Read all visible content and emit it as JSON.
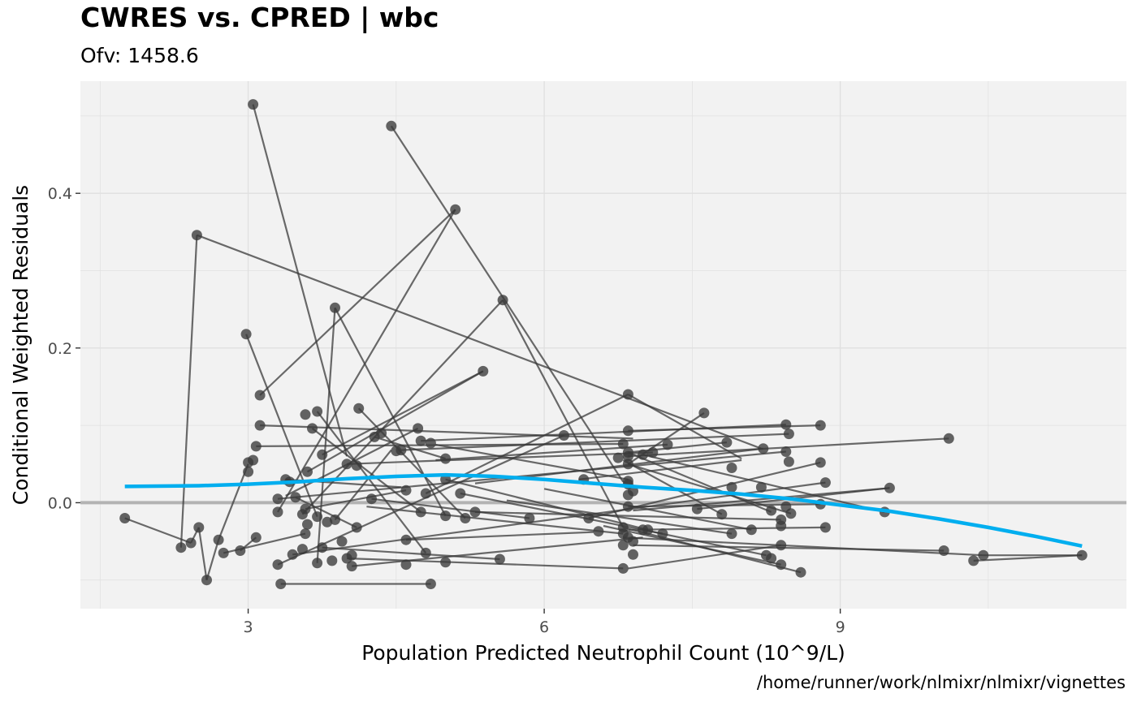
{
  "chart_data": {
    "type": "scatter",
    "title": "CWRES vs. CPRED | wbc",
    "subtitle": "Ofv: 1458.6",
    "caption": "/home/runner/work/nlmixr/nlmixr/vignettes",
    "xlabel": "Population Predicted Neutrophil Count (10^9/L)",
    "ylabel": "Conditional Weighted Residuals",
    "xlim": [
      1.3,
      11.9
    ],
    "ylim": [
      -0.137,
      0.545
    ],
    "xticks": [
      3,
      6,
      9
    ],
    "yticks": [
      0.0,
      0.2,
      0.4
    ],
    "grid": true,
    "reference_line_y": 0.0,
    "colors": {
      "points": "#3a3a3a",
      "lines": "#3a3a3a",
      "smooth": "#00aeef",
      "reference": "#b3b3b3",
      "panel": "#f2f2f2",
      "grid": "#e0e0e0"
    },
    "paths": [
      [
        [
          3.05,
          0.515
        ],
        [
          4.0,
          0.06
        ]
      ],
      [
        [
          4.45,
          0.487
        ],
        [
          6.8,
          0.027
        ]
      ],
      [
        [
          2.48,
          0.346
        ],
        [
          2.32,
          -0.058
        ]
      ],
      [
        [
          2.48,
          0.346
        ],
        [
          8.2,
          0.07
        ]
      ],
      [
        [
          5.1,
          0.379
        ],
        [
          3.12,
          0.139
        ]
      ],
      [
        [
          5.1,
          0.379
        ],
        [
          3.3,
          -0.012
        ]
      ],
      [
        [
          5.58,
          0.262
        ],
        [
          6.8,
          -0.032
        ]
      ],
      [
        [
          5.58,
          0.262
        ],
        [
          3.55,
          -0.015
        ]
      ],
      [
        [
          3.88,
          0.252
        ],
        [
          5.0,
          -0.017
        ]
      ],
      [
        [
          3.88,
          0.252
        ],
        [
          3.7,
          -0.078
        ]
      ],
      [
        [
          2.98,
          0.218
        ],
        [
          3.7,
          -0.018
        ]
      ],
      [
        [
          5.38,
          0.17
        ],
        [
          3.6,
          0.04
        ]
      ],
      [
        [
          6.85,
          0.14
        ],
        [
          8.0,
          0.057
        ]
      ],
      [
        [
          6.85,
          0.14
        ],
        [
          4.8,
          0.012
        ]
      ],
      [
        [
          4.12,
          0.122
        ],
        [
          5.2,
          -0.02
        ]
      ],
      [
        [
          7.62,
          0.116
        ],
        [
          6.85,
          0.05
        ]
      ],
      [
        [
          3.12,
          0.1
        ],
        [
          6.9,
          0.083
        ]
      ],
      [
        [
          3.65,
          0.096
        ],
        [
          4.75,
          -0.012
        ]
      ],
      [
        [
          6.85,
          0.093
        ],
        [
          8.8,
          0.1
        ]
      ],
      [
        [
          4.72,
          0.096
        ],
        [
          3.38,
          0.009
        ]
      ],
      [
        [
          3.7,
          0.118
        ],
        [
          4.8,
          -0.065
        ]
      ],
      [
        [
          6.2,
          0.087
        ],
        [
          3.3,
          -0.08
        ]
      ],
      [
        [
          6.8,
          0.076
        ],
        [
          3.08,
          0.073
        ]
      ],
      [
        [
          8.45,
          0.101
        ],
        [
          4.75,
          0.08
        ]
      ],
      [
        [
          8.48,
          0.089
        ],
        [
          4.55,
          0.068
        ]
      ],
      [
        [
          8.22,
          0.07
        ],
        [
          5.3,
          0.025
        ]
      ],
      [
        [
          7.85,
          0.078
        ],
        [
          6.85,
          0.065
        ]
      ],
      [
        [
          6.85,
          0.06
        ],
        [
          10.1,
          0.083
        ]
      ],
      [
        [
          8.8,
          0.052
        ],
        [
          6.45,
          -0.02
        ]
      ],
      [
        [
          8.85,
          0.026
        ],
        [
          3.45,
          -0.067
        ]
      ],
      [
        [
          8.45,
          0.066
        ],
        [
          3.3,
          0.005
        ]
      ],
      [
        [
          9.5,
          0.019
        ],
        [
          6.9,
          -0.01
        ]
      ],
      [
        [
          8.5,
          -0.014
        ],
        [
          6.85,
          0.05
        ]
      ],
      [
        [
          9.45,
          -0.012
        ],
        [
          7.0,
          0.062
        ]
      ],
      [
        [
          10.05,
          -0.062
        ],
        [
          6.9,
          -0.055
        ]
      ],
      [
        [
          10.45,
          -0.068
        ],
        [
          6.8,
          -0.045
        ]
      ],
      [
        [
          11.45,
          -0.068
        ],
        [
          10.45,
          -0.068
        ]
      ],
      [
        [
          11.45,
          -0.068
        ],
        [
          10.35,
          -0.075
        ]
      ],
      [
        [
          8.85,
          -0.032
        ],
        [
          6.85,
          -0.035
        ]
      ],
      [
        [
          8.6,
          -0.09
        ],
        [
          6.8,
          -0.032
        ]
      ],
      [
        [
          8.4,
          -0.08
        ],
        [
          6.6,
          -0.03
        ]
      ],
      [
        [
          8.25,
          -0.068
        ],
        [
          7.0,
          -0.035
        ]
      ],
      [
        [
          8.4,
          -0.055
        ],
        [
          6.85,
          -0.085
        ]
      ],
      [
        [
          6.8,
          -0.085
        ],
        [
          4.0,
          -0.072
        ]
      ],
      [
        [
          4.85,
          -0.105
        ],
        [
          3.33,
          -0.105
        ]
      ],
      [
        [
          5.55,
          -0.073
        ],
        [
          3.75,
          -0.058
        ]
      ],
      [
        [
          1.75,
          -0.02
        ],
        [
          2.42,
          -0.052
        ]
      ],
      [
        [
          2.42,
          -0.052
        ],
        [
          2.5,
          -0.032
        ]
      ],
      [
        [
          2.5,
          -0.032
        ],
        [
          2.58,
          -0.1
        ]
      ],
      [
        [
          2.58,
          -0.1
        ],
        [
          2.7,
          -0.048
        ]
      ],
      [
        [
          2.7,
          -0.048
        ],
        [
          3.0,
          0.05
        ]
      ],
      [
        [
          2.75,
          -0.065
        ],
        [
          3.58,
          -0.04
        ]
      ],
      [
        [
          2.92,
          -0.062
        ],
        [
          3.08,
          -0.045
        ]
      ],
      [
        [
          3.38,
          0.03
        ],
        [
          4.55,
          0.02
        ]
      ],
      [
        [
          3.48,
          0.007
        ],
        [
          4.1,
          -0.032
        ]
      ],
      [
        [
          4.25,
          0.005
        ],
        [
          5.85,
          -0.02
        ]
      ],
      [
        [
          4.28,
          0.085
        ],
        [
          5.0,
          0.057
        ]
      ],
      [
        [
          4.0,
          0.05
        ],
        [
          7.1,
          0.065
        ]
      ],
      [
        [
          4.2,
          -0.005
        ],
        [
          6.8,
          -0.04
        ]
      ],
      [
        [
          5.0,
          0.03
        ],
        [
          7.05,
          -0.035
        ]
      ],
      [
        [
          5.15,
          0.012
        ],
        [
          7.2,
          -0.04
        ]
      ],
      [
        [
          4.6,
          -0.048
        ],
        [
          6.5,
          -0.038
        ]
      ],
      [
        [
          4.05,
          -0.082
        ],
        [
          7.0,
          -0.045
        ]
      ],
      [
        [
          5.62,
          0.003
        ],
        [
          7.9,
          -0.04
        ]
      ],
      [
        [
          6.0,
          0.018
        ],
        [
          8.1,
          -0.035
        ]
      ],
      [
        [
          6.85,
          0.065
        ],
        [
          8.3,
          -0.012
        ]
      ],
      [
        [
          6.8,
          0.055
        ],
        [
          7.8,
          -0.015
        ]
      ],
      [
        [
          5.3,
          -0.012
        ],
        [
          8.4,
          -0.022
        ]
      ],
      [
        [
          6.35,
          0.03
        ],
        [
          8.0,
          0.055
        ]
      ],
      [
        [
          4.9,
          0.055
        ],
        [
          7.25,
          0.075
        ]
      ],
      [
        [
          6.85,
          -0.005
        ],
        [
          8.8,
          -0.002
        ]
      ],
      [
        [
          7.55,
          -0.008
        ],
        [
          9.5,
          0.019
        ]
      ],
      [
        [
          3.75,
          0.062
        ],
        [
          5.38,
          0.17
        ]
      ],
      [
        [
          3.88,
          -0.022
        ],
        [
          4.45,
          0.068
        ]
      ],
      [
        [
          3.58,
          -0.008
        ],
        [
          4.6,
          0.016
        ]
      ],
      [
        [
          4.9,
          0.075
        ],
        [
          6.85,
          0.03
        ]
      ]
    ],
    "points": [
      [
        3.05,
        0.515
      ],
      [
        4.45,
        0.487
      ],
      [
        5.1,
        0.379
      ],
      [
        2.48,
        0.346
      ],
      [
        5.58,
        0.262
      ],
      [
        3.88,
        0.252
      ],
      [
        2.98,
        0.218
      ],
      [
        5.38,
        0.17
      ],
      [
        6.85,
        0.14
      ],
      [
        3.12,
        0.139
      ],
      [
        4.12,
        0.122
      ],
      [
        3.7,
        0.118
      ],
      [
        7.62,
        0.116
      ],
      [
        3.58,
        0.114
      ],
      [
        3.12,
        0.1
      ],
      [
        8.8,
        0.1
      ],
      [
        8.45,
        0.101
      ],
      [
        4.72,
        0.096
      ],
      [
        3.65,
        0.096
      ],
      [
        6.85,
        0.093
      ],
      [
        4.35,
        0.09
      ],
      [
        8.48,
        0.089
      ],
      [
        6.2,
        0.087
      ],
      [
        4.28,
        0.085
      ],
      [
        10.1,
        0.083
      ],
      [
        4.75,
        0.08
      ],
      [
        4.85,
        0.077
      ],
      [
        7.85,
        0.078
      ],
      [
        6.8,
        0.076
      ],
      [
        7.25,
        0.075
      ],
      [
        3.08,
        0.073
      ],
      [
        8.22,
        0.07
      ],
      [
        4.55,
        0.068
      ],
      [
        4.5,
        0.067
      ],
      [
        8.45,
        0.066
      ],
      [
        6.85,
        0.065
      ],
      [
        7.1,
        0.065
      ],
      [
        7.0,
        0.062
      ],
      [
        3.75,
        0.062
      ],
      [
        6.85,
        0.06
      ],
      [
        6.75,
        0.058
      ],
      [
        5.0,
        0.057
      ],
      [
        3.05,
        0.055
      ],
      [
        8.8,
        0.052
      ],
      [
        8.48,
        0.053
      ],
      [
        3.0,
        0.052
      ],
      [
        6.85,
        0.05
      ],
      [
        4.0,
        0.05
      ],
      [
        4.1,
        0.048
      ],
      [
        7.9,
        0.045
      ],
      [
        3.0,
        0.04
      ],
      [
        3.6,
        0.04
      ],
      [
        3.38,
        0.03
      ],
      [
        6.4,
        0.03
      ],
      [
        6.85,
        0.028
      ],
      [
        8.85,
        0.026
      ],
      [
        3.42,
        0.027
      ],
      [
        5.0,
        0.03
      ],
      [
        6.85,
        0.024
      ],
      [
        8.2,
        0.02
      ],
      [
        9.5,
        0.019
      ],
      [
        7.9,
        0.02
      ],
      [
        4.6,
        0.016
      ],
      [
        6.9,
        0.015
      ],
      [
        4.8,
        0.012
      ],
      [
        5.15,
        0.012
      ],
      [
        3.48,
        0.007
      ],
      [
        3.3,
        0.005
      ],
      [
        4.25,
        0.005
      ],
      [
        6.85,
        0.01
      ],
      [
        8.8,
        -0.002
      ],
      [
        8.45,
        -0.005
      ],
      [
        6.85,
        -0.005
      ],
      [
        7.55,
        -0.008
      ],
      [
        8.3,
        -0.01
      ],
      [
        3.58,
        -0.008
      ],
      [
        4.75,
        -0.012
      ],
      [
        5.3,
        -0.012
      ],
      [
        9.45,
        -0.012
      ],
      [
        3.3,
        -0.012
      ],
      [
        8.5,
        -0.014
      ],
      [
        3.55,
        -0.015
      ],
      [
        7.8,
        -0.015
      ],
      [
        5.0,
        -0.017
      ],
      [
        3.7,
        -0.018
      ],
      [
        5.85,
        -0.02
      ],
      [
        1.75,
        -0.02
      ],
      [
        5.2,
        -0.02
      ],
      [
        6.45,
        -0.02
      ],
      [
        3.88,
        -0.022
      ],
      [
        8.4,
        -0.022
      ],
      [
        3.8,
        -0.025
      ],
      [
        3.6,
        -0.028
      ],
      [
        4.1,
        -0.032
      ],
      [
        6.8,
        -0.032
      ],
      [
        2.5,
        -0.032
      ],
      [
        8.4,
        -0.03
      ],
      [
        8.85,
        -0.032
      ],
      [
        7.0,
        -0.035
      ],
      [
        6.55,
        -0.037
      ],
      [
        8.1,
        -0.035
      ],
      [
        7.05,
        -0.035
      ],
      [
        3.58,
        -0.04
      ],
      [
        7.9,
        -0.04
      ],
      [
        6.8,
        -0.04
      ],
      [
        7.2,
        -0.04
      ],
      [
        3.08,
        -0.045
      ],
      [
        6.85,
        -0.045
      ],
      [
        4.6,
        -0.048
      ],
      [
        2.7,
        -0.048
      ],
      [
        6.9,
        -0.05
      ],
      [
        3.95,
        -0.05
      ],
      [
        2.42,
        -0.052
      ],
      [
        6.8,
        -0.055
      ],
      [
        8.4,
        -0.055
      ],
      [
        2.32,
        -0.058
      ],
      [
        3.75,
        -0.058
      ],
      [
        3.55,
        -0.06
      ],
      [
        2.92,
        -0.062
      ],
      [
        10.05,
        -0.062
      ],
      [
        4.8,
        -0.065
      ],
      [
        2.75,
        -0.065
      ],
      [
        3.45,
        -0.067
      ],
      [
        8.25,
        -0.068
      ],
      [
        10.45,
        -0.068
      ],
      [
        11.45,
        -0.068
      ],
      [
        6.9,
        -0.067
      ],
      [
        4.05,
        -0.068
      ],
      [
        5.55,
        -0.073
      ],
      [
        8.3,
        -0.072
      ],
      [
        3.85,
        -0.075
      ],
      [
        10.35,
        -0.075
      ],
      [
        4.0,
        -0.072
      ],
      [
        3.7,
        -0.078
      ],
      [
        5.0,
        -0.077
      ],
      [
        8.4,
        -0.08
      ],
      [
        4.6,
        -0.08
      ],
      [
        3.3,
        -0.08
      ],
      [
        4.05,
        -0.082
      ],
      [
        6.8,
        -0.085
      ],
      [
        8.6,
        -0.09
      ],
      [
        2.58,
        -0.1
      ],
      [
        4.85,
        -0.105
      ],
      [
        3.33,
        -0.105
      ]
    ],
    "smooth": [
      [
        1.75,
        0.021
      ],
      [
        2.5,
        0.022
      ],
      [
        3.0,
        0.024
      ],
      [
        3.5,
        0.027
      ],
      [
        4.0,
        0.031
      ],
      [
        4.5,
        0.034
      ],
      [
        5.0,
        0.036
      ],
      [
        5.5,
        0.034
      ],
      [
        6.0,
        0.03
      ],
      [
        6.5,
        0.025
      ],
      [
        7.0,
        0.02
      ],
      [
        7.5,
        0.016
      ],
      [
        8.0,
        0.011
      ],
      [
        8.5,
        0.005
      ],
      [
        9.0,
        -0.003
      ],
      [
        9.5,
        -0.011
      ],
      [
        10.0,
        -0.021
      ],
      [
        10.5,
        -0.032
      ],
      [
        11.0,
        -0.044
      ],
      [
        11.45,
        -0.056
      ]
    ]
  }
}
